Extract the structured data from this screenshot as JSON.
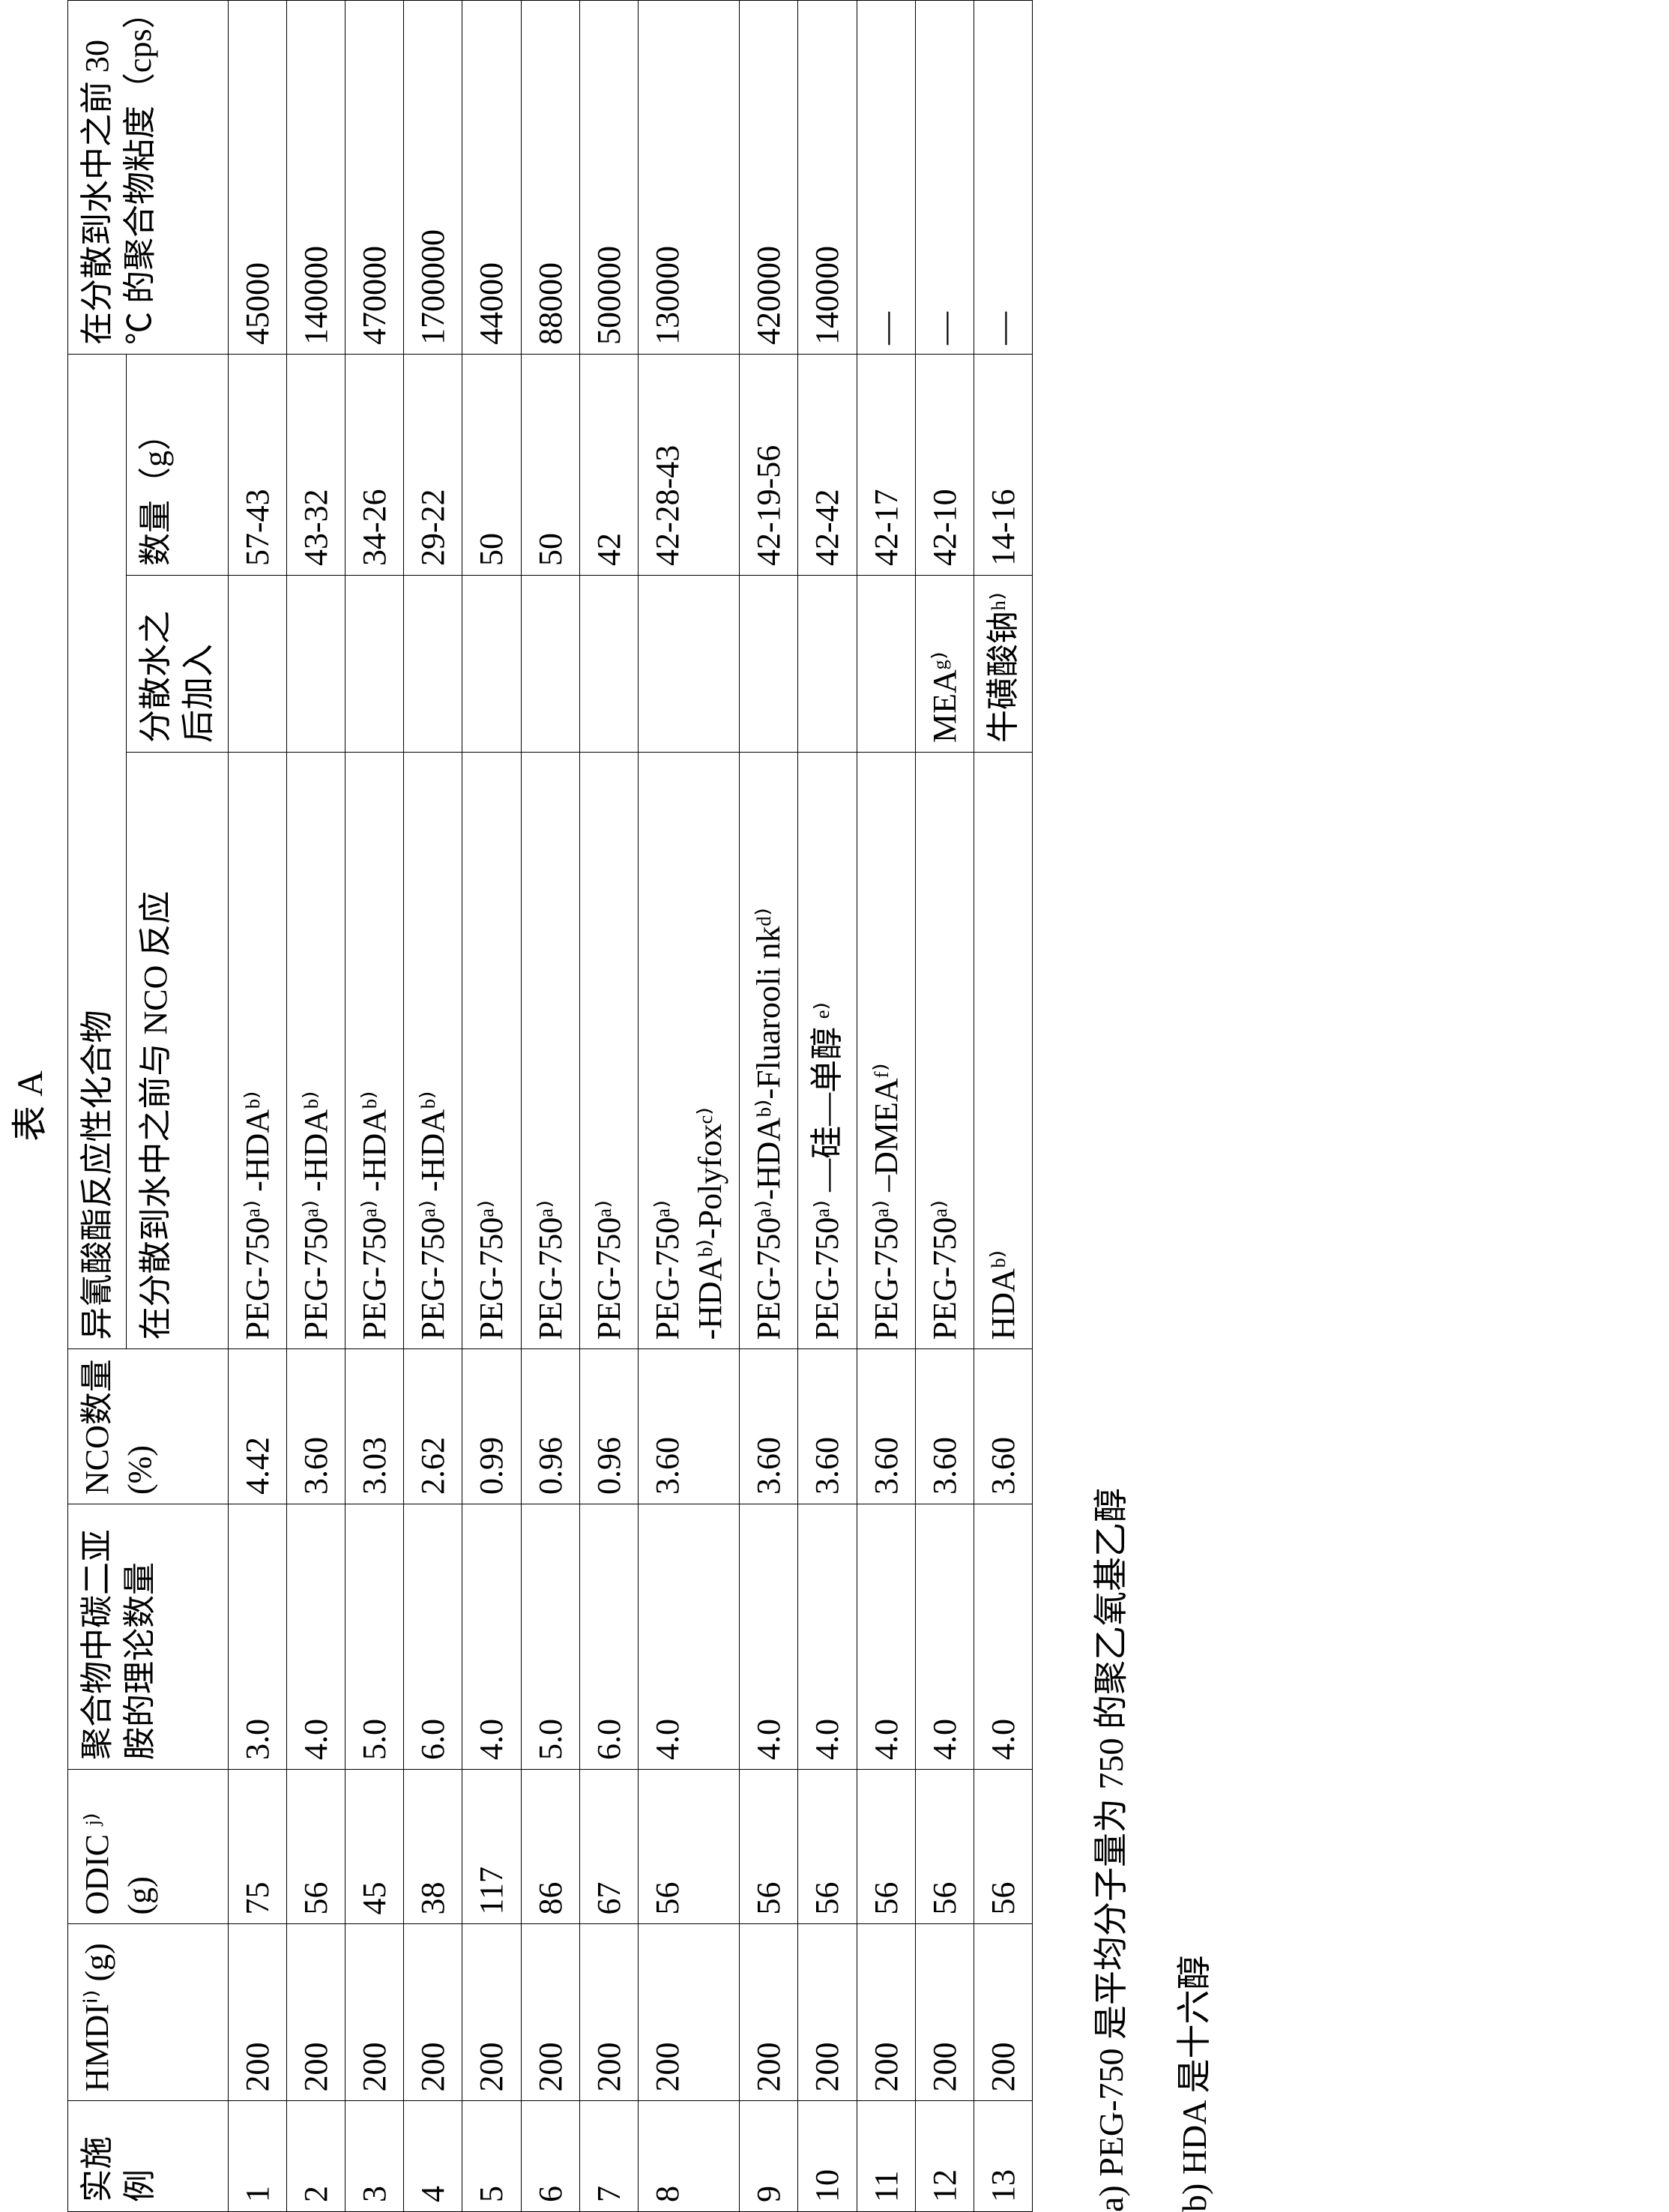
{
  "title": "表 A",
  "headers": {
    "col1": "实施例",
    "col2": "HMDIⁱ⁾\n(g)",
    "col3": "ODIC ʲ⁾\n(g)",
    "col4": "聚合物中碳二亚胺的理论数量",
    "col5": "NCO数量\n(%)",
    "group6": "异氰酸酯反应性化合物",
    "col6a": "在分散到水中之前与 NCO 反应",
    "col6b": "分散水之后加入",
    "col7": "数量（g）",
    "col8": "在分散到水中之前 30 ℃ 的聚合物粘度（cps）"
  },
  "rows": [
    {
      "ex": "1",
      "hmdi": "200",
      "odic": "75",
      "cdi": "3.0",
      "nco": "4.42",
      "react": "PEG-750ᵃ⁾ -HDAᵇ⁾",
      "after": "",
      "qty": "57-43",
      "visc": "45000"
    },
    {
      "ex": "2",
      "hmdi": "200",
      "odic": "56",
      "cdi": "4.0",
      "nco": "3.60",
      "react": "PEG-750ᵃ⁾ -HDAᵇ⁾",
      "after": "",
      "qty": "43-32",
      "visc": "140000"
    },
    {
      "ex": "3",
      "hmdi": "200",
      "odic": "45",
      "cdi": "5.0",
      "nco": "3.03",
      "react": "PEG-750ᵃ⁾ -HDAᵇ⁾",
      "after": "",
      "qty": "34-26",
      "visc": "470000"
    },
    {
      "ex": "4",
      "hmdi": "200",
      "odic": "38",
      "cdi": "6.0",
      "nco": "2.62",
      "react": "PEG-750ᵃ⁾ -HDAᵇ⁾",
      "after": "",
      "qty": "29-22",
      "visc": "1700000"
    },
    {
      "ex": "5",
      "hmdi": "200",
      "odic": "117",
      "cdi": "4.0",
      "nco": "0.99",
      "react": "PEG-750ᵃ⁾",
      "after": "",
      "qty": "50",
      "visc": "44000"
    },
    {
      "ex": "6",
      "hmdi": "200",
      "odic": "86",
      "cdi": "5.0",
      "nco": "0.96",
      "react": "PEG-750ᵃ⁾",
      "after": "",
      "qty": "50",
      "visc": "88000"
    },
    {
      "ex": "7",
      "hmdi": "200",
      "odic": "67",
      "cdi": "6.0",
      "nco": "0.96",
      "react": "PEG-750ᵃ⁾",
      "after": "",
      "qty": "42",
      "visc": "500000"
    },
    {
      "ex": "8",
      "hmdi": "200",
      "odic": "56",
      "cdi": "4.0",
      "nco": "3.60",
      "react": "PEG-750ᵃ⁾\n-HDAᵇ⁾-Polyfoxᶜ⁾",
      "after": "",
      "qty": "42-28-43",
      "visc": "130000"
    },
    {
      "ex": "9",
      "hmdi": "200",
      "odic": "56",
      "cdi": "4.0",
      "nco": "3.60",
      "react": "PEG-750ᵃ⁾-HDAᵇ⁾-Fluarooli nkᵈ⁾",
      "after": "",
      "qty": "42-19-56",
      "visc": "420000"
    },
    {
      "ex": "10",
      "hmdi": "200",
      "odic": "56",
      "cdi": "4.0",
      "nco": "3.60",
      "react": "PEG-750ᵃ⁾ —硅—单醇 ᵉ⁾",
      "after": "",
      "qty": "42-42",
      "visc": "140000"
    },
    {
      "ex": "11",
      "hmdi": "200",
      "odic": "56",
      "cdi": "4.0",
      "nco": "3.60",
      "react": "PEG-750ᵃ⁾ –DMEAᶠ⁾",
      "after": "",
      "qty": "42-17",
      "visc": "—"
    },
    {
      "ex": "12",
      "hmdi": "200",
      "odic": "56",
      "cdi": "4.0",
      "nco": "3.60",
      "react": "PEG-750ᵃ⁾",
      "after": "MEAᵍ⁾",
      "qty": "42-10",
      "visc": "—"
    },
    {
      "ex": "13",
      "hmdi": "200",
      "odic": "56",
      "cdi": "4.0",
      "nco": "3.60",
      "react": "HDAᵇ⁾",
      "after": "牛磺酸钠ʰ⁾",
      "qty": "14-16",
      "visc": "—"
    }
  ],
  "notes": {
    "a": "a)  PEG-750 是平均分子量为 750 的聚乙氧基乙醇",
    "b": "b)  HDA 是十六醇"
  }
}
